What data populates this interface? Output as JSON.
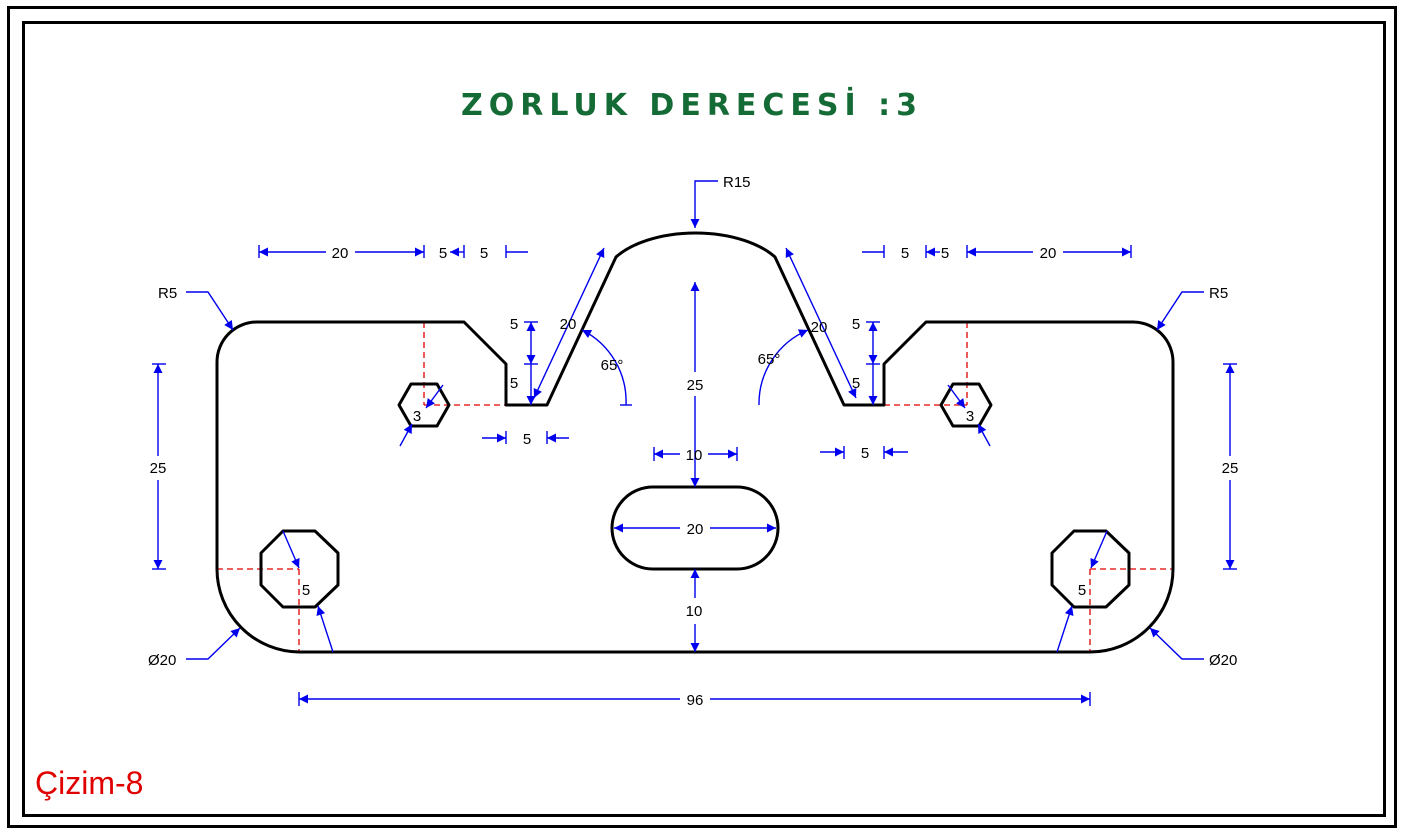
{
  "title": "ZORLUK DERECESİ :3",
  "drawing_label": "Çizim-8",
  "colors": {
    "title": "#156b35",
    "label": "#e00000",
    "dimension": "#0000ee",
    "centerline": "#e00000",
    "outline": "#000000"
  },
  "dimensions": {
    "top_radius": "R15",
    "corner_radius_left": "R5",
    "corner_radius_right": "R5",
    "left_top_width": "20",
    "left_step_a": "5",
    "left_step_b": "5",
    "right_step_a": "5",
    "right_step_b": "5",
    "right_top_width": "20",
    "left_slot_depth_top": "5",
    "left_slot_depth_bottom": "5",
    "right_slot_depth_top": "5",
    "right_slot_depth_bottom": "5",
    "left_slope_length": "20",
    "right_slope_length": "20",
    "left_angle": "65°",
    "right_angle": "65°",
    "center_height": "25",
    "left_slot_width": "5",
    "right_slot_width": "5",
    "left_hex": "3",
    "right_hex": "3",
    "obround_height": "10",
    "obround_length": "20",
    "bottom_gap": "10",
    "left_height": "25",
    "right_height": "25",
    "left_octagon": "5",
    "right_octagon": "5",
    "left_diameter": "Ø20",
    "right_diameter": "Ø20",
    "overall_width": "96"
  }
}
